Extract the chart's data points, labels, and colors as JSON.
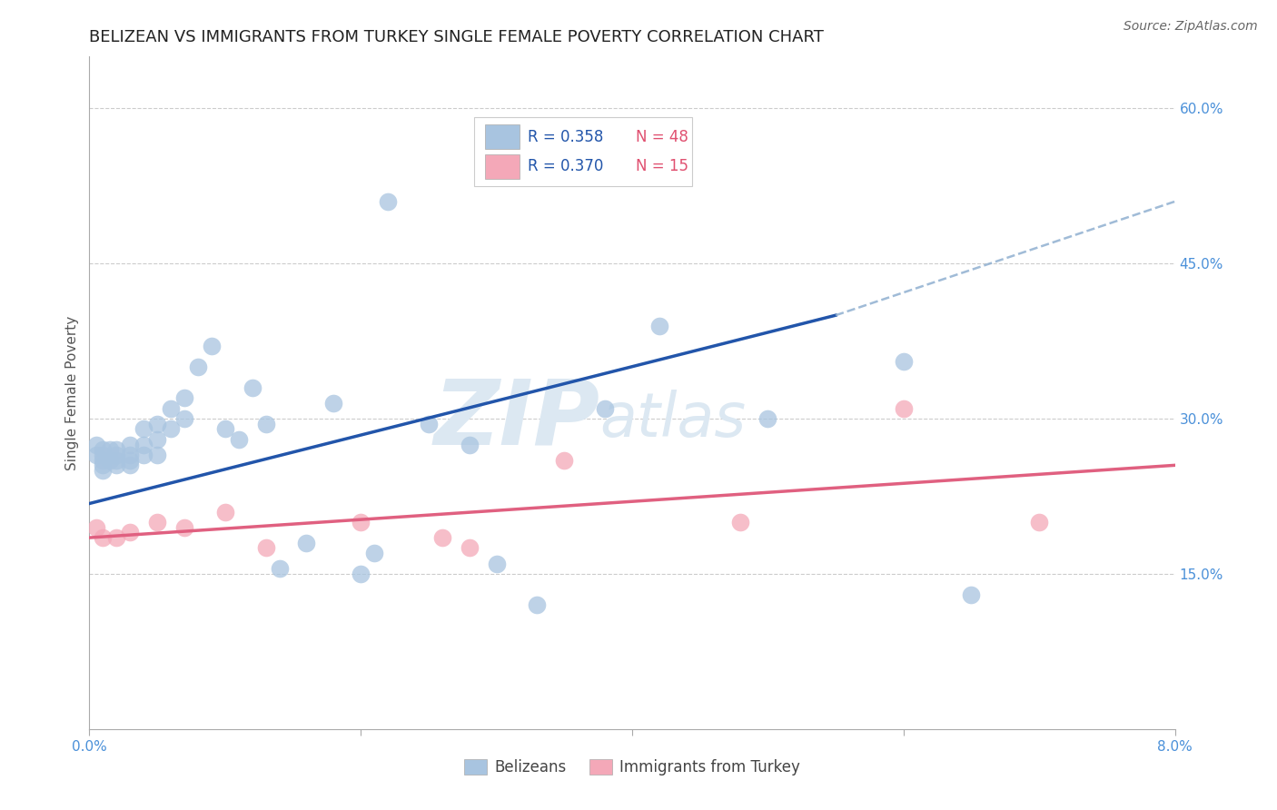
{
  "title": "BELIZEAN VS IMMIGRANTS FROM TURKEY SINGLE FEMALE POVERTY CORRELATION CHART",
  "source": "Source: ZipAtlas.com",
  "ylabel": "Single Female Poverty",
  "xlim": [
    0.0,
    0.08
  ],
  "ylim": [
    0.0,
    0.65
  ],
  "x_ticks": [
    0.0,
    0.02,
    0.04,
    0.06,
    0.08
  ],
  "y_ticks_right": [
    0.15,
    0.3,
    0.45,
    0.6
  ],
  "y_tick_labels_right": [
    "15.0%",
    "30.0%",
    "45.0%",
    "60.0%"
  ],
  "grid_color": "#cccccc",
  "background_color": "#ffffff",
  "belizean_color": "#a8c4e0",
  "turkey_color": "#f4a8b8",
  "belizean_line_color": "#2255aa",
  "turkey_line_color": "#e06080",
  "dashed_line_color": "#90b0d0",
  "watermark_zip": "ZIP",
  "watermark_atlas": "atlas",
  "legend_R1": "R = 0.358",
  "legend_N1": "N = 48",
  "legend_R2": "R = 0.370",
  "legend_N2": "N = 15",
  "legend_label1": "Belizeans",
  "legend_label2": "Immigrants from Turkey",
  "belizean_x": [
    0.0005,
    0.0005,
    0.001,
    0.001,
    0.001,
    0.001,
    0.001,
    0.0015,
    0.0015,
    0.002,
    0.002,
    0.002,
    0.002,
    0.003,
    0.003,
    0.003,
    0.003,
    0.004,
    0.004,
    0.004,
    0.005,
    0.005,
    0.005,
    0.006,
    0.006,
    0.007,
    0.007,
    0.008,
    0.009,
    0.01,
    0.011,
    0.012,
    0.013,
    0.014,
    0.016,
    0.018,
    0.02,
    0.021,
    0.022,
    0.025,
    0.028,
    0.03,
    0.033,
    0.038,
    0.042,
    0.05,
    0.06,
    0.065
  ],
  "belizean_y": [
    0.265,
    0.275,
    0.255,
    0.265,
    0.27,
    0.26,
    0.25,
    0.26,
    0.27,
    0.255,
    0.26,
    0.27,
    0.265,
    0.255,
    0.265,
    0.275,
    0.26,
    0.265,
    0.275,
    0.29,
    0.265,
    0.28,
    0.295,
    0.29,
    0.31,
    0.3,
    0.32,
    0.35,
    0.37,
    0.29,
    0.28,
    0.33,
    0.295,
    0.155,
    0.18,
    0.315,
    0.15,
    0.17,
    0.51,
    0.295,
    0.275,
    0.16,
    0.12,
    0.31,
    0.39,
    0.3,
    0.355,
    0.13
  ],
  "turkey_x": [
    0.0005,
    0.001,
    0.002,
    0.003,
    0.005,
    0.007,
    0.01,
    0.013,
    0.02,
    0.026,
    0.028,
    0.035,
    0.048,
    0.06,
    0.07
  ],
  "turkey_y": [
    0.195,
    0.185,
    0.185,
    0.19,
    0.2,
    0.195,
    0.21,
    0.175,
    0.2,
    0.185,
    0.175,
    0.26,
    0.2,
    0.31,
    0.2
  ],
  "belizean_line_x": [
    0.0,
    0.055
  ],
  "belizean_line_y": [
    0.218,
    0.4
  ],
  "dashed_line_x": [
    0.055,
    0.08
  ],
  "dashed_line_y": [
    0.4,
    0.51
  ],
  "turkey_line_x": [
    0.0,
    0.08
  ],
  "turkey_line_y": [
    0.185,
    0.255
  ],
  "title_fontsize": 13,
  "axis_label_fontsize": 11,
  "tick_fontsize": 11,
  "legend_fontsize": 12,
  "source_fontsize": 10
}
